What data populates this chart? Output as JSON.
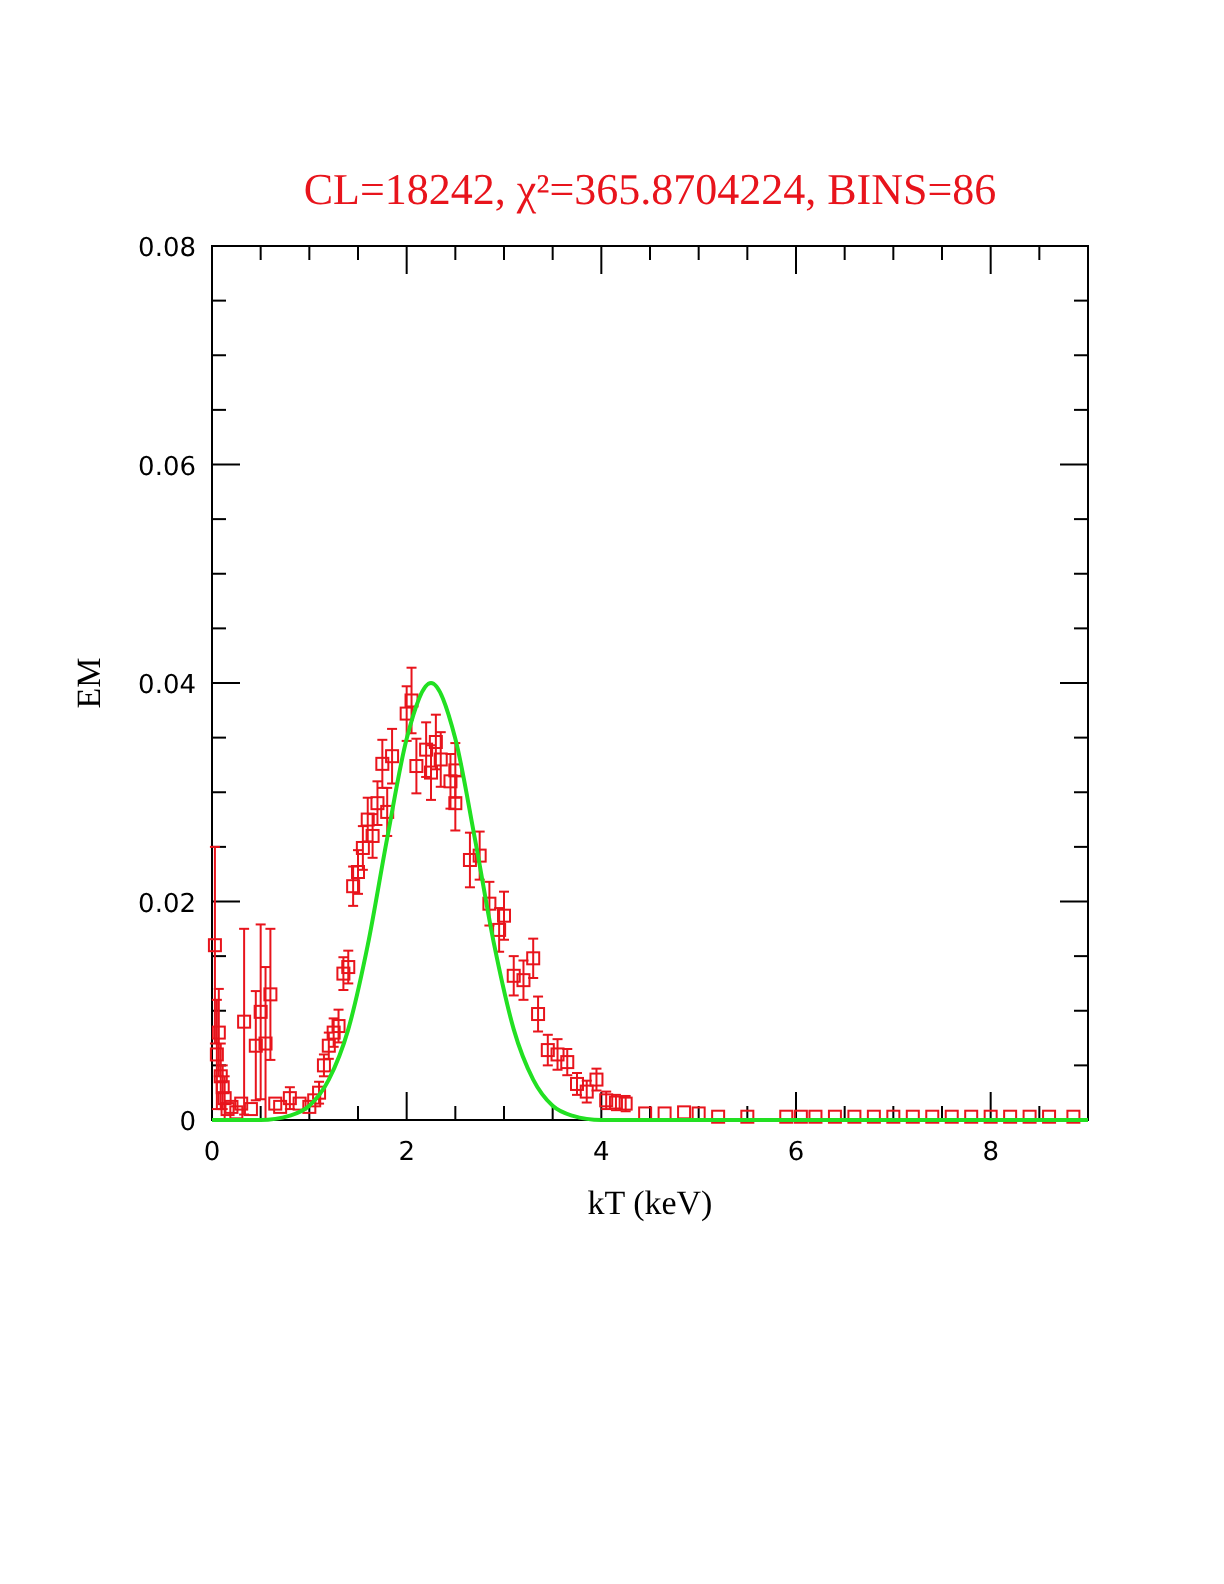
{
  "chart_data": {
    "type": "scatter",
    "title": "CL=18242, χ²=365.8704224, BINS=86",
    "xlabel": "kT (keV)",
    "ylabel": "EM",
    "xlim": [
      0,
      9
    ],
    "ylim": [
      0,
      0.08
    ],
    "xticks": [
      0,
      {
        "value": 0.5,
        "label": null
      },
      {
        "value": 1,
        "label": null
      },
      {
        "value": 1.5,
        "label": null
      },
      2,
      {
        "value": 2.5,
        "label": null
      },
      {
        "value": 3,
        "label": null
      },
      {
        "value": 3.5,
        "label": null
      },
      4,
      {
        "value": 4.5,
        "label": null
      },
      {
        "value": 5,
        "label": null
      },
      {
        "value": 5.5,
        "label": null
      },
      6,
      {
        "value": 6.5,
        "label": null
      },
      {
        "value": 7,
        "label": null
      },
      {
        "value": 7.5,
        "label": null
      },
      8,
      {
        "value": 8.5,
        "label": null
      },
      {
        "value": 9,
        "label": null
      }
    ],
    "yticks": [
      {
        "value": 0,
        "label": "0"
      },
      {
        "value": 0.005,
        "label": null
      },
      {
        "value": 0.01,
        "label": null
      },
      {
        "value": 0.015,
        "label": null
      },
      {
        "value": 0.02,
        "label": "0.02"
      },
      {
        "value": 0.025,
        "label": null
      },
      {
        "value": 0.03,
        "label": null
      },
      {
        "value": 0.035,
        "label": null
      },
      {
        "value": 0.04,
        "label": "0.04"
      },
      {
        "value": 0.045,
        "label": null
      },
      {
        "value": 0.05,
        "label": null
      },
      {
        "value": 0.055,
        "label": null
      },
      {
        "value": 0.06,
        "label": "0.06"
      },
      {
        "value": 0.065,
        "label": null
      },
      {
        "value": 0.07,
        "label": null
      },
      {
        "value": 0.075,
        "label": null
      },
      {
        "value": 0.08,
        "label": "0.08"
      }
    ],
    "grid": false,
    "series": [
      {
        "color": "#e8141c",
        "marker": "square",
        "x": [
          0.03,
          0.05,
          0.07,
          0.09,
          0.11,
          0.13,
          0.16,
          0.2,
          0.25,
          0.3,
          0.33,
          0.4,
          0.45,
          0.5,
          0.55,
          0.6,
          0.65,
          0.7,
          0.8,
          0.9,
          1.0,
          1.05,
          1.1,
          1.15,
          1.2,
          1.25,
          1.3,
          1.35,
          1.4,
          1.45,
          1.5,
          1.55,
          1.6,
          1.65,
          1.7,
          1.75,
          1.8,
          1.85,
          2.0,
          2.05,
          2.1,
          2.2,
          2.25,
          2.3,
          2.35,
          2.45,
          2.5,
          2.5,
          2.65,
          2.75,
          2.85,
          2.95,
          3.0,
          3.1,
          3.2,
          3.3,
          3.35,
          3.45,
          3.55,
          3.65,
          3.75,
          3.85,
          3.95,
          4.05,
          4.15,
          4.25,
          4.45,
          4.65,
          4.85,
          5.0,
          5.2,
          5.5,
          5.9,
          6.05,
          6.2,
          6.4,
          6.6,
          6.8,
          7.0,
          7.2,
          7.4,
          7.6,
          7.8,
          8.0,
          8.2,
          8.4,
          8.6,
          8.85
        ],
        "values": [
          0.016,
          0.006,
          0.008,
          0.004,
          0.003,
          0.002,
          0.001,
          0.0012,
          0.0007,
          0.0015,
          0.009,
          0.001,
          0.0068,
          0.0099,
          0.007,
          0.0115,
          0.0015,
          0.0012,
          0.002,
          0.0015,
          0.0012,
          0.0018,
          0.0025,
          0.005,
          0.0068,
          0.008,
          0.0086,
          0.0134,
          0.014,
          0.0214,
          0.0227,
          0.0249,
          0.0275,
          0.026,
          0.029,
          0.0326,
          0.0282,
          0.0333,
          0.0372,
          0.0384,
          0.0324,
          0.0339,
          0.0318,
          0.0346,
          0.033,
          0.031,
          0.032,
          0.029,
          0.0238,
          0.0242,
          0.0198,
          0.0174,
          0.0187,
          0.0132,
          0.0128,
          0.0148,
          0.0097,
          0.0064,
          0.006,
          0.0053,
          0.0033,
          0.0026,
          0.0037,
          0.0018,
          0.0016,
          0.0015,
          0.0006,
          0.0006,
          0.0007,
          0.0006,
          0.0003,
          0.0003,
          0.0003,
          0.0003,
          0.0003,
          0.0003,
          0.0003,
          0.0003,
          0.0003,
          0.0003,
          0.0003,
          0.0003,
          0.0003,
          0.0003,
          0.0003,
          0.0003,
          0.0003,
          0.0003
        ],
        "errors": [
          0.009,
          0.005,
          0.004,
          0.003,
          0.002,
          0.002,
          null,
          null,
          null,
          null,
          0.0085,
          null,
          0.005,
          0.008,
          0.007,
          0.006,
          null,
          null,
          0.001,
          null,
          null,
          null,
          0.001,
          0.001,
          0.0012,
          0.0013,
          0.0015,
          0.0015,
          0.0015,
          0.0018,
          0.002,
          0.002,
          0.002,
          0.002,
          0.002,
          0.0022,
          0.0022,
          0.0025,
          0.0025,
          0.003,
          0.0025,
          0.0025,
          0.0025,
          0.0025,
          0.0025,
          0.0025,
          0.0025,
          0.0025,
          0.0025,
          0.0022,
          0.002,
          0.002,
          0.0022,
          0.0018,
          0.0018,
          0.0018,
          0.0016,
          0.0014,
          0.0014,
          0.0012,
          0.001,
          0.001,
          0.001,
          0.0008,
          0.0007,
          0.0007,
          null,
          null,
          null,
          null,
          null,
          null,
          null,
          null,
          null,
          null,
          null,
          null,
          null,
          null,
          null,
          null,
          null,
          null,
          null,
          null,
          null,
          null
        ]
      },
      {
        "type": "line",
        "color": "#22e022",
        "x": [
          0,
          0.5,
          0.8,
          1.0,
          1.2,
          1.4,
          1.6,
          1.8,
          2.0,
          2.25,
          2.5,
          2.7,
          2.9,
          3.1,
          3.3,
          3.5,
          3.7,
          4.0,
          4.5,
          9
        ],
        "values": [
          0,
          0,
          0.0004,
          0.0013,
          0.0037,
          0.0083,
          0.016,
          0.0258,
          0.0349,
          0.04,
          0.0349,
          0.0258,
          0.016,
          0.0083,
          0.0037,
          0.0013,
          0.0004,
          0,
          0,
          0
        ]
      }
    ]
  }
}
